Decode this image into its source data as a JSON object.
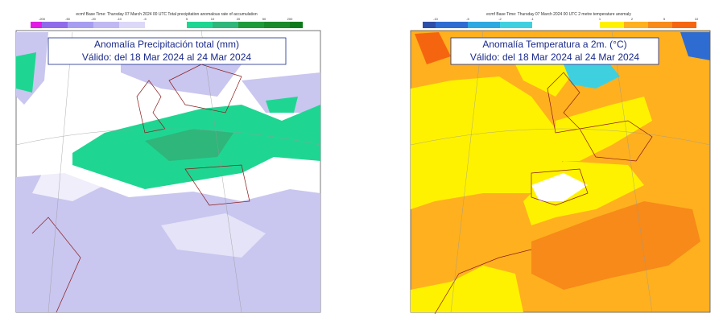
{
  "panels": [
    {
      "header": "ecmf Base Time: Thursday 07 March 2024 00 UTC Total precipitation anomalous rate of accumulation",
      "colorbar_labels": [
        "-200",
        "-50",
        "-20",
        "-10",
        "-5",
        "5",
        "10",
        "20",
        "50",
        "200"
      ],
      "title": "Anomalía Precipitación total (mm)",
      "subtitle": "Válido: del 18 Mar 2024 al 24 Mar 2024"
    },
    {
      "header": "ecmf Base Time: Thursday 07 March 2024 00 UTC 2 metre temperature anomaly",
      "colorbar_labels": [
        "-10",
        "-5",
        "-2",
        "-1",
        "1",
        "2",
        "5",
        "10"
      ],
      "title": "Anomalía Temperatura a 2m. (°C)",
      "subtitle": "Válido: del 18 Mar 2024 al 24 Mar 2024"
    }
  ]
}
